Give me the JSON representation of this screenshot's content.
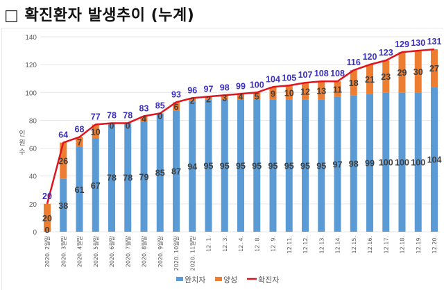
{
  "title": "□ 확진환자 발생추이 (누계)",
  "chart_data": {
    "type": "bar",
    "stacked": true,
    "title": "확진환자 발생추이 (누계)",
    "xlabel": "",
    "ylabel": "인원수",
    "ylim": [
      0,
      140
    ],
    "yticks": [
      0,
      20,
      40,
      60,
      80,
      100,
      120,
      140
    ],
    "grid": true,
    "legend_position": "bottom",
    "categories": [
      "2020. 2월말",
      "2020. 3월말",
      "2020. 4월말",
      "2020. 5월말",
      "2020. 6월말",
      "2020. 7월말",
      "2020. 8월말",
      "2020. 9월말",
      "2020. 10월말",
      "2020. 11월말",
      "12. 1.",
      "12. 3.",
      "12. 4.",
      "12. 8.",
      "12. 9.",
      "12.11.",
      "12.12.",
      "12.13.",
      "12.14.",
      "12.15.",
      "12.16.",
      "12.17.",
      "12.18.",
      "12.19.",
      "12.20."
    ],
    "series": [
      {
        "name": "완치자",
        "type": "bar",
        "color": "#5b9bd5",
        "values": [
          0,
          38,
          61,
          67,
          78,
          78,
          79,
          85,
          87,
          94,
          95,
          95,
          95,
          95,
          95,
          95,
          95,
          95,
          97,
          98,
          99,
          100,
          100,
          100,
          104
        ]
      },
      {
        "name": "양성",
        "type": "bar",
        "color": "#ed7d31",
        "values": [
          20,
          26,
          7,
          10,
          0,
          0,
          4,
          0,
          6,
          2,
          2,
          3,
          4,
          5,
          9,
          10,
          12,
          13,
          11,
          18,
          21,
          23,
          29,
          30,
          27
        ]
      },
      {
        "name": "확진자",
        "type": "line",
        "color": "#e0141e",
        "values": [
          20,
          64,
          68,
          77,
          78,
          78,
          83,
          85,
          93,
          96,
          97,
          98,
          99,
          100,
          104,
          105,
          107,
          108,
          108,
          116,
          120,
          123,
          129,
          130,
          131
        ]
      }
    ]
  }
}
